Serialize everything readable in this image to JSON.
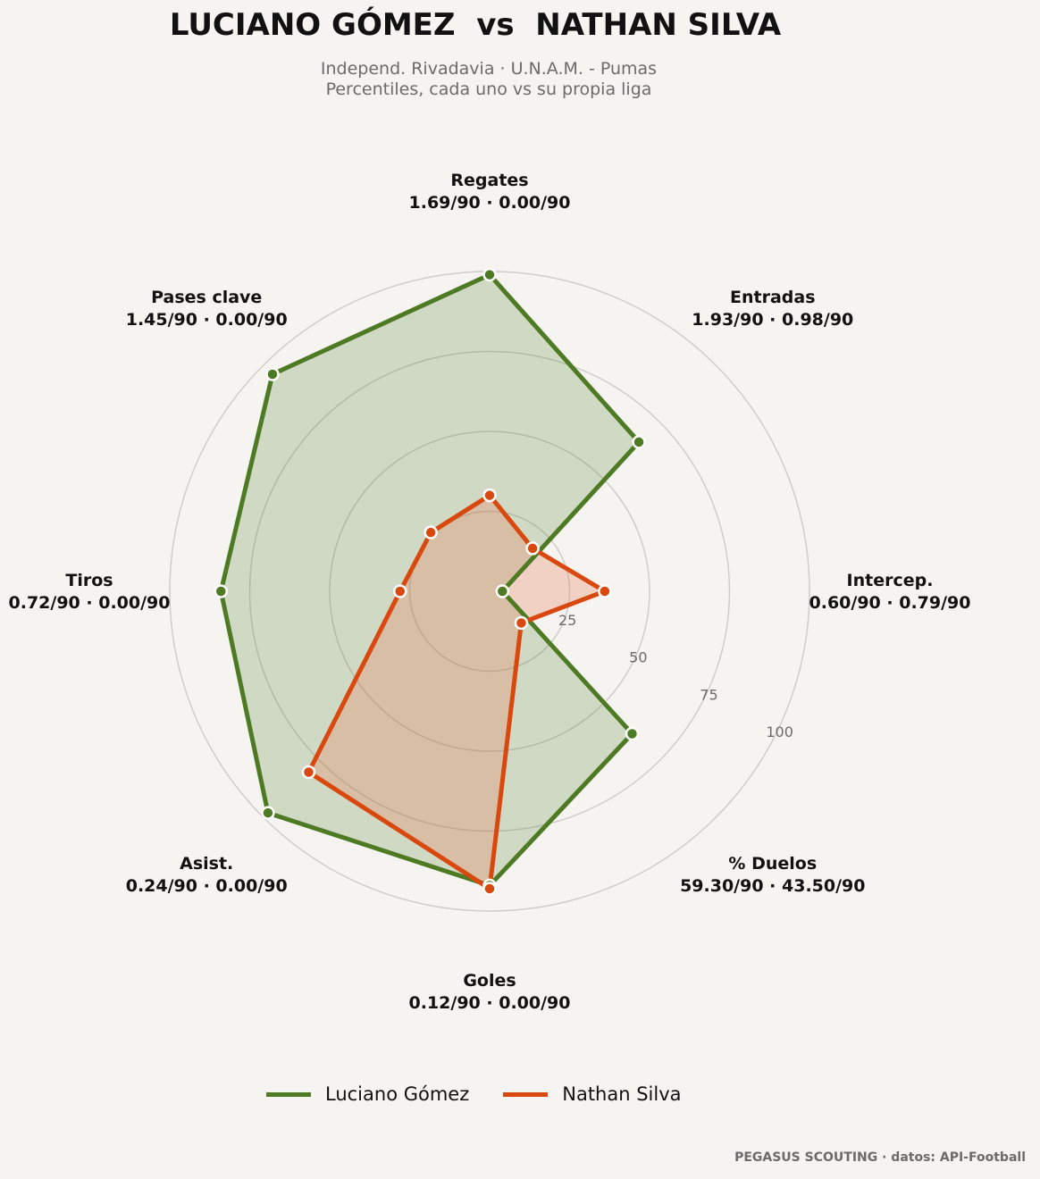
{
  "header": {
    "title": "LUCIANO GÓMEZ  vs  NATHAN SILVA",
    "subtitle_line1": "Independ. Rivadavia · U.N.A.M. - Pumas",
    "subtitle_line2": "Percentiles, cada uno vs su propia liga"
  },
  "chart_data": {
    "type": "radar",
    "axes": [
      {
        "label": "Regates",
        "value_label": "1.69/90 · 0.00/90"
      },
      {
        "label": "Entradas",
        "value_label": "1.93/90 · 0.98/90"
      },
      {
        "label": "Intercep.",
        "value_label": "0.60/90 · 0.79/90"
      },
      {
        "label": "% Duelos",
        "value_label": "59.30/90 · 43.50/90"
      },
      {
        "label": "Goles",
        "value_label": "0.12/90 · 0.00/90"
      },
      {
        "label": "Asist.",
        "value_label": "0.24/90 · 0.00/90"
      },
      {
        "label": "Tiros",
        "value_label": "0.72/90 · 0.00/90"
      },
      {
        "label": "Pases clave",
        "value_label": "1.45/90 · 0.00/90"
      }
    ],
    "rlim": [
      0,
      100
    ],
    "rticks": [
      25,
      50,
      75,
      100
    ],
    "series": [
      {
        "name": "Luciano Gómez",
        "color": "#4e7a24",
        "fill": "#4e7a24",
        "values": [
          99,
          66,
          4,
          63,
          92,
          98,
          84,
          96
        ]
      },
      {
        "name": "Nathan Silva",
        "color": "#d9480f",
        "fill": "#e8825a",
        "values": [
          30,
          19,
          36,
          14,
          93,
          80,
          28,
          26
        ]
      }
    ],
    "grid": true,
    "legend": "bottom"
  },
  "legend": {
    "items": [
      {
        "label": "Luciano Gómez",
        "color": "#4e7a24"
      },
      {
        "label": "Nathan Silva",
        "color": "#d9480f"
      }
    ]
  },
  "footer": {
    "credit": "PEGASUS SCOUTING · datos: API-Football"
  }
}
